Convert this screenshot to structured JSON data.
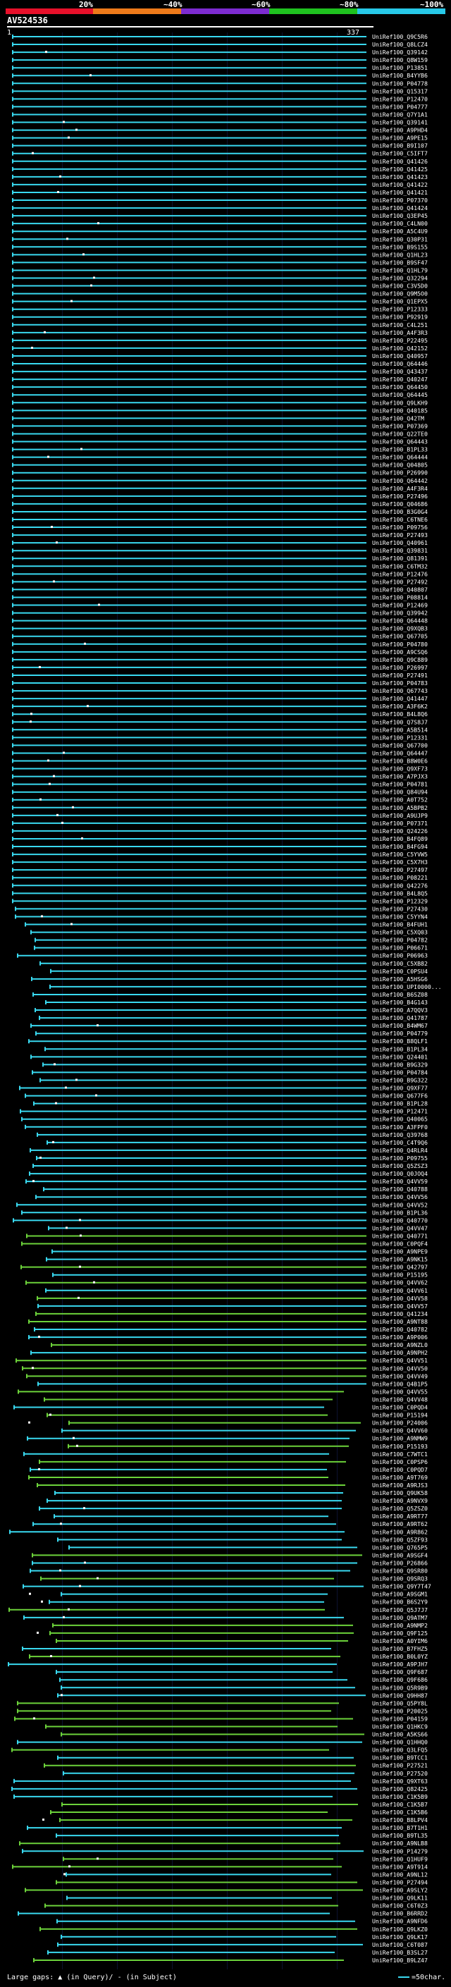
{
  "query": {
    "id": "AV524536",
    "start": "1",
    "end": "337"
  },
  "scale": {
    "labels": [
      "20%",
      "~40%",
      "~60%",
      "~80%",
      "~100%"
    ],
    "colors": [
      "#e8102a",
      "#ee7a1a",
      "#7d2bd0",
      "#1fc21f",
      "#27c9e8"
    ]
  },
  "hit_colors": {
    "high": "#39d9f0",
    "mid": "#6cd23a"
  },
  "footer": {
    "large_gaps_label": "Large gaps:",
    "query_marker": "▲",
    "in_query": "(in Query)/",
    "subject_marker": "-",
    "in_subject": "(in Subject)",
    "legend_text": "=50char."
  },
  "hits": [
    "UniRef100_Q9C5R6",
    "UniRef100_Q8LCZ4",
    "UniRef100_Q39142",
    "UniRef100_Q8W159",
    "UniRef100_P13851",
    "UniRef100_B4YYB6",
    "UniRef100_P04778",
    "UniRef100_Q15317",
    "UniRef100_P12470",
    "UniRef100_P04777",
    "UniRef100_Q7Y1A1",
    "UniRef100_Q39141",
    "UniRef100_A9PHD4",
    "UniRef100_A9PE15",
    "UniRef100_B9I107",
    "UniRef100_C5IFT7",
    "UniRef100_Q41426",
    "UniRef100_Q41425",
    "UniRef100_Q41423",
    "UniRef100_Q41422",
    "UniRef100_Q41421",
    "UniRef100_P07370",
    "UniRef100_Q41424",
    "UniRef100_Q3EP45",
    "UniRef100_C4LN00",
    "UniRef100_A5C4U9",
    "UniRef100_Q30P31",
    "UniRef100_B9S155",
    "UniRef100_Q1HL23",
    "UniRef100_B9SF47",
    "UniRef100_Q1HL79",
    "UniRef100_Q32294",
    "UniRef100_C3V5D0",
    "UniRef100_Q9M5O0",
    "UniRef100_Q1EPX5",
    "UniRef100_P12333",
    "UniRef100_P92919",
    "UniRef100_C4L251",
    "UniRef100_A4F3R3",
    "UniRef100_P22495",
    "UniRef100_Q42152",
    "UniRef100_Q40957",
    "UniRef100_Q64446",
    "UniRef100_Q43437",
    "UniRef100_Q40247",
    "UniRef100_Q64450",
    "UniRef100_Q64445",
    "UniRef100_Q9LKH9",
    "UniRef100_Q40185",
    "UniRef100_Q42TM",
    "UniRef100_P07369",
    "UniRef100_Q22TE0",
    "UniRef100_Q64443",
    "UniRef100_B1PL33",
    "UniRef100_Q64444",
    "UniRef100_Q04805",
    "UniRef100_P26990",
    "UniRef100_Q64442",
    "UniRef100_A4F3R4",
    "UniRef100_P27496",
    "UniRef100_Q04686",
    "UniRef100_B3G0G4",
    "UniRef100_C6TNE6",
    "UniRef100_P09756",
    "UniRef100_P27493",
    "UniRef100_Q40961",
    "UniRef100_Q39831",
    "UniRef100_Q81391",
    "UniRef100_C6TM32",
    "UniRef100_P12476",
    "UniRef100_P27492",
    "UniRef100_Q40807",
    "UniRef100_P08814",
    "UniRef100_P12469",
    "UniRef100_Q39942",
    "UniRef100_Q64448",
    "UniRef100_Q9XQB3",
    "UniRef100_Q67705",
    "UniRef100_P04780",
    "UniRef100_A9CSQ6",
    "UniRef100_Q9C889",
    "UniRef100_P26997",
    "UniRef100_P27491",
    "UniRef100_P04783",
    "UniRef100_Q67743",
    "UniRef100_Q41447",
    "UniRef100_A3F6K2",
    "UniRef100_B4L8Q6",
    "UniRef100_Q7S8J7",
    "UniRef100_A5B514",
    "UniRef100_P12331",
    "UniRef100_Q67700",
    "UniRef100_Q64447",
    "UniRef100_B8W0E6",
    "UniRef100_Q9XF73",
    "UniRef100_A7PJX3",
    "UniRef100_P04781",
    "UniRef100_Q84U94",
    "UniRef100_A0T752",
    "UniRef100_A5BPB2",
    "UniRef100_A9UJP9",
    "UniRef100_P07371",
    "UniRef100_Q24226",
    "UniRef100_B4FQ89",
    "UniRef100_B4FG94",
    "UniRef100_C5YVW5",
    "UniRef100_C5X7H3",
    "UniRef100_P27497",
    "UniRef100_P08221",
    "UniRef100_Q42276",
    "UniRef100_B4L8Q5",
    "UniRef100_P12329",
    "UniRef100_P27430",
    "UniRef100_C5YYN4",
    "UniRef100_B4FUH1",
    "UniRef100_C5XQ03",
    "UniRef100_P04782",
    "UniRef100_P06671",
    "UniRef100_P06963",
    "UniRef100_C5XB82",
    "UniRef100_C0PSU4",
    "UniRef100_A5HSG6",
    "UniRef100_UPI0000...",
    "UniRef100_B6SZ08",
    "UniRef100_B4G143",
    "UniRef100_A7QQV3",
    "UniRef100_Q41787",
    "UniRef100_B4WM67",
    "UniRef100_P04779",
    "UniRef100_B8QLF1",
    "UniRef100_B1PL34",
    "UniRef100_Q24401",
    "UniRef100_B9G329",
    "UniRef100_P04784",
    "UniRef100_B9G322",
    "UniRef100_Q9XF77",
    "UniRef100_Q677F6",
    "UniRef100_B1PL28",
    "UniRef100_P12471",
    "UniRef100_Q40065",
    "UniRef100_A3FPF0",
    "UniRef100_Q39768",
    "UniRef100_C4T9Q6",
    "UniRef100_Q4RLR4",
    "UniRef100_P09755",
    "UniRef100_Q5ZSZ3",
    "UniRef100_Q0JOQ4",
    "UniRef100_Q4VV59",
    "UniRef100_Q40788",
    "UniRef100_Q4VV56",
    "UniRef100_Q4VV52",
    "UniRef100_B1PL36",
    "UniRef100_Q40770",
    "UniRef100_Q4VV47",
    "UniRef100_Q40771",
    "UniRef100_C0PQF4",
    "UniRef100_A9NPE9",
    "UniRef100_A9NK15",
    "UniRef100_Q42797",
    "UniRef100_P15195",
    "UniRef100_Q4VV62",
    "UniRef100_Q4VV61",
    "UniRef100_Q4VV58",
    "UniRef100_Q4VV57",
    "UniRef100_Q41234",
    "UniRef100_A9NT88",
    "UniRef100_Q40782",
    "UniRef100_A9P006",
    "UniRef100_A9NZL0",
    "UniRef100_A9NPH2",
    "UniRef100_Q4VV51",
    "UniRef100_Q4VV50",
    "UniRef100_Q4VV49",
    "UniRef100_Q4B1P5",
    "UniRef100_Q4VV55",
    "UniRef100_Q4VV48",
    "UniRef100_C0PQD4",
    "UniRef100_P15194",
    "UniRef100_P24006",
    "UniRef100_Q4VV60",
    "UniRef100_A9NMW9",
    "UniRef100_P15193",
    "UniRef100_C7WTC1",
    "UniRef100_C0PSP6",
    "UniRef100_C0PQD7",
    "UniRef100_A9T769",
    "UniRef100_A9RJS3",
    "UniRef100_Q9UK58",
    "UniRef100_A9NVX9",
    "UniRef100_Q5ZSZ0",
    "UniRef100_A9RT77",
    "UniRef100_A9RT62",
    "UniRef100_A9R862",
    "UniRef100_Q5ZF93",
    "UniRef100_Q765P5",
    "UniRef100_A9SGF4",
    "UniRef100_P26866",
    "UniRef100_Q9SR80",
    "UniRef100_Q9SRQ3",
    "UniRef100_Q9Y7T47",
    "UniRef100_A9SGM1",
    "UniRef100_B6S2Y9",
    "UniRef100_Q5J7J7",
    "UniRef100_Q9ATM7",
    "UniRef100_A9NMP2",
    "UniRef100_Q9F125",
    "UniRef100_A0YIM6",
    "UniRef100_B7FHZ5",
    "UniRef100_B0L0YZ",
    "UniRef100_A9PJH7",
    "UniRef100_Q9F687",
    "UniRef100_Q9F686",
    "UniRef100_Q5R9B9",
    "UniRef100_Q9HH87",
    "UniRef100_Q5PY8L",
    "UniRef100_P20025",
    "UniRef100_P04159",
    "UniRef100_Q1HKC9",
    "UniRef100_A5KS66",
    "UniRef100_Q1HHQ0",
    "UniRef100_Q3LFQ5",
    "UniRef100_B9TCC1",
    "UniRef100_P27521",
    "UniRef100_P27520",
    "UniRef100_Q9XT63",
    "UniRef100_Q82425",
    "UniRef100_C1K5B9",
    "UniRef100_C1K5B7",
    "UniRef100_C1K5B6",
    "UniRef100_B8LPV4",
    "UniRef100_B7T1H1",
    "UniRef100_B9TL35",
    "UniRef100_A9NLB8",
    "UniRef100_P14279",
    "UniRef100_Q1HUF9",
    "UniRef100_A9T914",
    "UniRef100_A9NL12",
    "UniRef100_P27494",
    "UniRef100_A9SLY2",
    "UniRef100_Q9LK11",
    "UniRef100_C6T0Z3",
    "UniRef100_B6RRD2",
    "UniRef100_A9NFD6",
    "UniRef100_Q9LKZ0",
    "UniRef100_Q9LK17",
    "UniRef100_C6T087",
    "UniRef100_B3SL27",
    "UniRef100_B9LZ47"
  ]
}
